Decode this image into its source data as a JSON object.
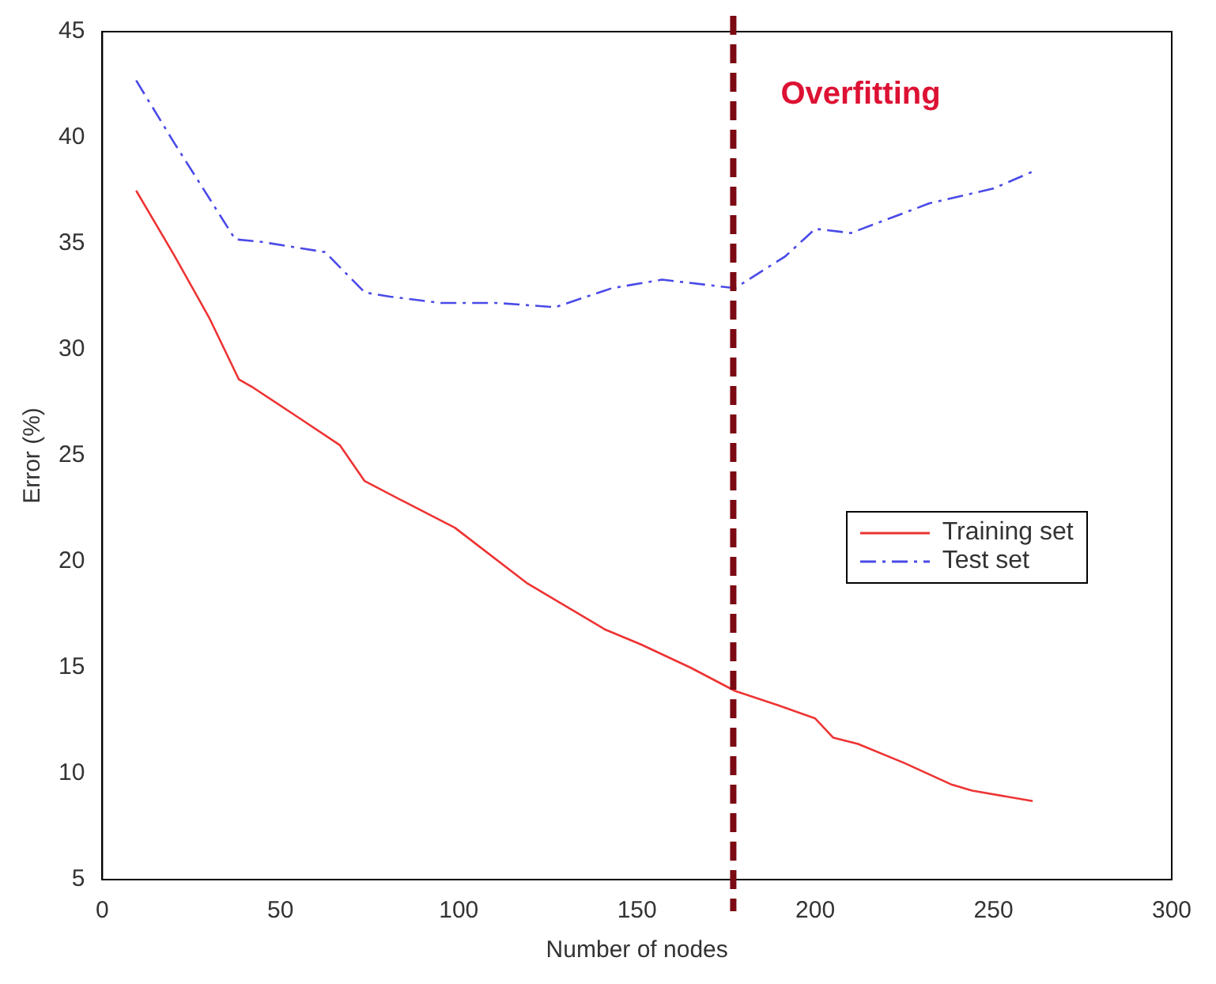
{
  "chart_data": {
    "type": "line",
    "xlabel": "Number of nodes",
    "ylabel": "Error (%)",
    "xlim": [
      0,
      300
    ],
    "xticks": [
      0,
      50,
      100,
      150,
      200,
      250,
      300
    ],
    "ylim": [
      5,
      45
    ],
    "yticks": [
      5,
      10,
      15,
      20,
      25,
      30,
      35,
      40,
      45
    ],
    "grid": false,
    "legend": "right",
    "marker": "none",
    "series": [
      {
        "name": "Training set",
        "color": "#ee3333",
        "line_style": "solid",
        "x": [
          9.5,
          20,
          30,
          38.3,
          42.4,
          55,
          66.6,
          73.6,
          85,
          98.9,
          119,
          141,
          151,
          165,
          177.5,
          190,
          200,
          205,
          212,
          225,
          238,
          244,
          261
        ],
        "values": [
          37.5,
          34.5,
          31.5,
          28.6,
          28.2,
          26.8,
          25.5,
          23.8,
          22.8,
          21.6,
          19,
          16.8,
          16.1,
          15,
          13.9,
          13.2,
          12.6,
          11.7,
          11.4,
          10.5,
          9.5,
          9.2,
          8.7
        ]
      },
      {
        "name": "Test set",
        "color": "#4a4ae8",
        "line_style": "dashed",
        "x": [
          9.5,
          20,
          37.3,
          44,
          62.5,
          73.6,
          80.7,
          95,
          111,
          127,
          143,
          157,
          177.5,
          191.6,
          200,
          210,
          232,
          250,
          261
        ],
        "values": [
          42.7,
          39.8,
          35.2,
          35.1,
          34.6,
          32.7,
          32.5,
          32.2,
          32.2,
          32,
          32.9,
          33.3,
          32.9,
          34.4,
          35.7,
          35.5,
          36.9,
          37.6,
          38.4
        ]
      }
    ],
    "ref_lines": [
      {
        "axis": "x",
        "value": 177,
        "label": "Overfitting",
        "color": "#7b0a14",
        "line_style": "dashed"
      }
    ]
  }
}
